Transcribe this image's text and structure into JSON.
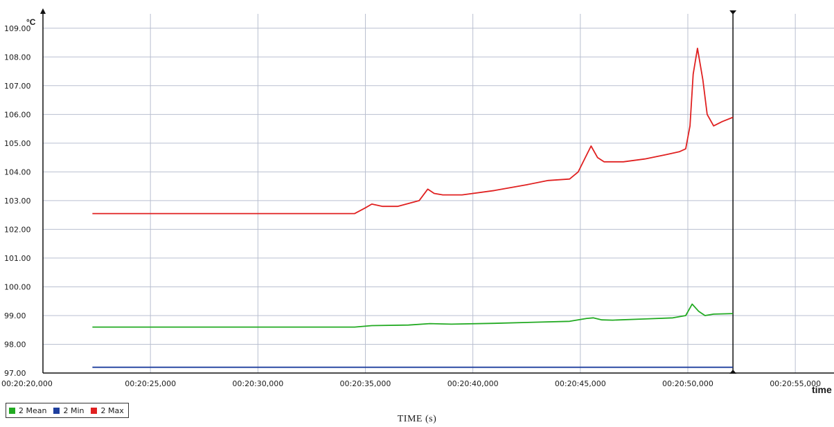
{
  "chart_data": {
    "type": "line",
    "y_unit": "°C",
    "x_axis_word": "time",
    "ylim": [
      97,
      109.5
    ],
    "y_ticks": [
      "109.00",
      "108.00",
      "107.00",
      "106.00",
      "105.00",
      "104.00",
      "103.00",
      "102.00",
      "101.00",
      "100.00",
      "99.00",
      "98.00",
      "97.00"
    ],
    "x_ticks": [
      "00:20:20,000",
      "00:20:25,000",
      "00:20:30,000",
      "00:20:35,000",
      "00:20:40,000",
      "00:20:45,000",
      "00:20:50,000",
      "00:20:55,000"
    ],
    "x_ticks_s": [
      1220,
      1225,
      1230,
      1235,
      1240,
      1245,
      1250,
      1255
    ],
    "xlim_s": [
      1220,
      1256.8
    ],
    "cursor_x_s": 1252.1,
    "grid": true,
    "legend_position": "bottom-left",
    "series": [
      {
        "name": "2 Mean",
        "color": "#22aa22",
        "x": [
          1222.3,
          1234.5,
          1235.3,
          1237,
          1238,
          1239,
          1241,
          1243,
          1244.5,
          1245.3,
          1245.6,
          1246.0,
          1246.5,
          1248,
          1249.3,
          1249.9,
          1250.2,
          1250.5,
          1250.8,
          1251.2,
          1252.1
        ],
        "y": [
          98.6,
          98.6,
          98.65,
          98.67,
          98.72,
          98.7,
          98.73,
          98.77,
          98.8,
          98.9,
          98.92,
          98.85,
          98.84,
          98.88,
          98.92,
          99.0,
          99.4,
          99.15,
          99.0,
          99.05,
          99.07
        ]
      },
      {
        "name": "2 Min",
        "color": "#1f3f9e",
        "x": [
          1222.3,
          1252.1
        ],
        "y": [
          97.2,
          97.2
        ]
      },
      {
        "name": "2 Max",
        "color": "#e02020",
        "x": [
          1222.3,
          1229,
          1234.5,
          1235.0,
          1235.3,
          1235.8,
          1236.5,
          1237.5,
          1237.9,
          1238.2,
          1238.6,
          1239.5,
          1241,
          1242.5,
          1243.5,
          1244.5,
          1244.9,
          1245.3,
          1245.5,
          1245.8,
          1246.1,
          1247,
          1248,
          1249,
          1249.6,
          1249.9,
          1250.1,
          1250.25,
          1250.45,
          1250.7,
          1250.9,
          1251.2,
          1251.6,
          1252.1
        ],
        "y": [
          102.55,
          102.55,
          102.55,
          102.75,
          102.88,
          102.8,
          102.8,
          103.0,
          103.4,
          103.25,
          103.2,
          103.2,
          103.35,
          103.55,
          103.7,
          103.75,
          104.0,
          104.6,
          104.9,
          104.5,
          104.35,
          104.35,
          104.45,
          104.6,
          104.7,
          104.8,
          105.6,
          107.4,
          108.3,
          107.2,
          106.0,
          105.6,
          105.75,
          105.9
        ]
      }
    ]
  },
  "legend": {
    "mean_label": "2 Mean",
    "mean_color": "#22aa22",
    "min_label": "2 Min",
    "min_color": "#1f3f9e",
    "max_label": "2 Max",
    "max_color": "#e02020"
  },
  "caption": "TIME (s)"
}
